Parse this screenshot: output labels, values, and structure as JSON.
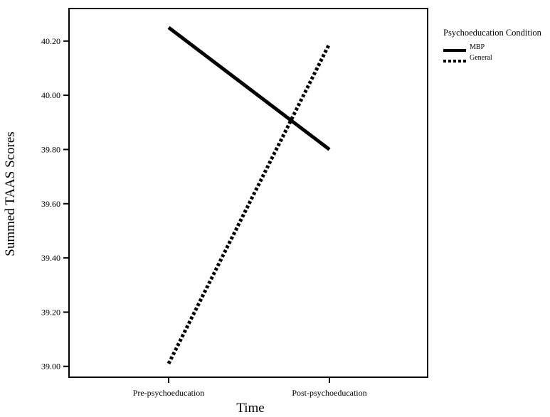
{
  "chart_data": {
    "type": "line",
    "title": "",
    "xlabel": "Time",
    "ylabel": "Summed TAAS Scores",
    "categories": [
      "Pre-psychoeducation",
      "Post-psychoeducation"
    ],
    "ylim": [
      38.96,
      40.32
    ],
    "yticks": [
      "39.00",
      "39.20",
      "39.40",
      "39.60",
      "39.80",
      "40.00",
      "40.20"
    ],
    "grid": false,
    "legend": {
      "title": "Psychoeducation Condition",
      "position": "right"
    },
    "series": [
      {
        "name": "MBP",
        "values": [
          40.25,
          39.8
        ],
        "style": "solid",
        "color": "#000000"
      },
      {
        "name": "General",
        "values": [
          39.01,
          40.19
        ],
        "style": "dotted",
        "color": "#000000"
      }
    ]
  }
}
